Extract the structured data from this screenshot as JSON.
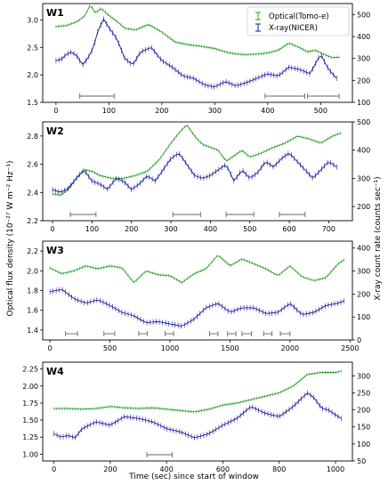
{
  "figure": {
    "xlabel": "Time (sec) since start of window",
    "ylabel_left": "Optical flux density (10⁻²⁷ W m⁻² Hz⁻¹)",
    "ylabel_right": "X-ray count rate (counts sec⁻¹)",
    "legend": [
      "Optical(Tomo-e)",
      "X-ray(NICER)"
    ],
    "colors": {
      "optical": "#2ca02c",
      "xray": "#1515a0",
      "bar": "#666666"
    }
  },
  "chart_data": [
    {
      "type": "line",
      "panel": "W1",
      "xlim": [
        -25,
        560
      ],
      "xticks": [
        0,
        100,
        200,
        300,
        400,
        500
      ],
      "ylim_left": [
        1.5,
        3.3
      ],
      "yticks_left": [
        1.5,
        2.0,
        2.5,
        3.0
      ],
      "ylim_right": [
        100,
        550
      ],
      "yticks_right": [
        100,
        200,
        300,
        400,
        500
      ],
      "legend_position": "top-right",
      "series": [
        {
          "name": "Optical(Tomo-e)",
          "axis": "left",
          "x": [
            0,
            20,
            40,
            55,
            65,
            75,
            85,
            100,
            115,
            130,
            150,
            175,
            200,
            225,
            250,
            275,
            300,
            320,
            340,
            360,
            380,
            400,
            420,
            440,
            460,
            475,
            490,
            505,
            520,
            535
          ],
          "y": [
            2.88,
            2.9,
            2.97,
            3.08,
            3.28,
            3.12,
            3.22,
            3.08,
            2.98,
            2.85,
            2.82,
            2.92,
            2.78,
            2.6,
            2.55,
            2.52,
            2.48,
            2.42,
            2.38,
            2.37,
            2.38,
            2.4,
            2.45,
            2.58,
            2.5,
            2.42,
            2.45,
            2.38,
            2.32,
            2.32
          ]
        },
        {
          "name": "X-ray(NICER)",
          "axis": "right",
          "x": [
            0,
            10,
            20,
            30,
            40,
            50,
            60,
            70,
            80,
            90,
            100,
            115,
            130,
            145,
            160,
            180,
            200,
            220,
            240,
            260,
            280,
            300,
            320,
            340,
            360,
            380,
            400,
            420,
            440,
            460,
            480,
            500,
            515,
            530
          ],
          "y": [
            290,
            295,
            320,
            330,
            310,
            270,
            300,
            345,
            430,
            480,
            440,
            390,
            300,
            270,
            330,
            350,
            290,
            260,
            220,
            210,
            180,
            170,
            195,
            175,
            190,
            210,
            230,
            220,
            260,
            250,
            230,
            320,
            250,
            210
          ]
        }
      ],
      "intervals": [
        [
          45,
          110
        ],
        [
          395,
          470
        ],
        [
          475,
          535
        ]
      ]
    },
    {
      "type": "line",
      "panel": "W2",
      "xlim": [
        -25,
        760
      ],
      "xticks": [
        0,
        100,
        200,
        300,
        400,
        500,
        600,
        700
      ],
      "ylim_left": [
        2.2,
        2.9
      ],
      "yticks_left": [
        2.2,
        2.4,
        2.6,
        2.8
      ],
      "ylim_right": [
        150,
        500
      ],
      "yticks_right": [
        200,
        300,
        400,
        500
      ],
      "series": [
        {
          "name": "Optical(Tomo-e)",
          "axis": "left",
          "x": [
            0,
            20,
            40,
            60,
            80,
            100,
            120,
            150,
            180,
            210,
            240,
            270,
            300,
            320,
            340,
            360,
            380,
            400,
            420,
            440,
            460,
            480,
            500,
            530,
            560,
            590,
            620,
            650,
            680,
            710,
            730
          ],
          "y": [
            2.39,
            2.38,
            2.42,
            2.5,
            2.56,
            2.55,
            2.52,
            2.5,
            2.5,
            2.52,
            2.55,
            2.63,
            2.75,
            2.82,
            2.88,
            2.8,
            2.74,
            2.72,
            2.7,
            2.62,
            2.66,
            2.7,
            2.65,
            2.68,
            2.72,
            2.75,
            2.8,
            2.78,
            2.75,
            2.8,
            2.82
          ]
        },
        {
          "name": "X-ray(NICER)",
          "axis": "right",
          "x": [
            0,
            20,
            40,
            60,
            80,
            100,
            120,
            140,
            160,
            180,
            200,
            220,
            240,
            260,
            280,
            300,
            320,
            340,
            360,
            380,
            400,
            420,
            440,
            460,
            480,
            500,
            520,
            540,
            560,
            580,
            600,
            620,
            640,
            660,
            680,
            700,
            720
          ],
          "y": [
            260,
            250,
            265,
            300,
            330,
            290,
            280,
            260,
            300,
            290,
            260,
            280,
            310,
            290,
            330,
            370,
            390,
            350,
            310,
            300,
            310,
            330,
            350,
            290,
            330,
            300,
            320,
            360,
            340,
            370,
            390,
            360,
            330,
            300,
            330,
            360,
            340
          ]
        }
      ],
      "intervals": [
        [
          45,
          110
        ],
        [
          305,
          375
        ],
        [
          440,
          510
        ],
        [
          575,
          640
        ]
      ]
    },
    {
      "type": "line",
      "panel": "W3",
      "xlim": [
        -60,
        2520
      ],
      "xticks": [
        0,
        500,
        1000,
        1500,
        2000,
        2500
      ],
      "ylim_left": [
        1.3,
        2.3
      ],
      "yticks_left": [
        1.4,
        1.6,
        1.8,
        2.0,
        2.2
      ],
      "ylim_right": [
        0,
        430
      ],
      "yticks_right": [
        0,
        100,
        200,
        300,
        400
      ],
      "series": [
        {
          "name": "Optical(Tomo-e)",
          "axis": "left",
          "x": [
            0,
            100,
            200,
            300,
            400,
            500,
            600,
            700,
            800,
            900,
            1000,
            1100,
            1200,
            1300,
            1400,
            1500,
            1600,
            1700,
            1800,
            1900,
            2000,
            2100,
            2200,
            2300,
            2400,
            2450
          ],
          "y": [
            2.03,
            1.97,
            2.0,
            2.05,
            2.02,
            2.05,
            2.03,
            1.88,
            2.0,
            1.96,
            1.95,
            1.88,
            1.97,
            2.02,
            2.16,
            2.05,
            2.12,
            2.07,
            2.02,
            1.95,
            2.05,
            1.94,
            1.9,
            1.93,
            2.07,
            2.11
          ]
        },
        {
          "name": "X-ray(NICER)",
          "axis": "right",
          "x": [
            0,
            100,
            200,
            300,
            400,
            500,
            600,
            700,
            800,
            900,
            1000,
            1100,
            1200,
            1300,
            1400,
            1500,
            1600,
            1700,
            1800,
            1900,
            2000,
            2100,
            2200,
            2300,
            2400,
            2450
          ],
          "y": [
            210,
            220,
            180,
            160,
            175,
            150,
            120,
            105,
            75,
            80,
            70,
            60,
            90,
            140,
            160,
            120,
            140,
            140,
            115,
            120,
            160,
            110,
            120,
            150,
            160,
            170
          ]
        }
      ],
      "intervals": [
        [
          130,
          230
        ],
        [
          450,
          540
        ],
        [
          740,
          810
        ],
        [
          960,
          1030
        ],
        [
          1330,
          1400
        ],
        [
          1480,
          1550
        ],
        [
          1600,
          1680
        ],
        [
          1780,
          1850
        ],
        [
          1920,
          2000
        ]
      ]
    },
    {
      "type": "line",
      "panel": "W4",
      "xlim": [
        -40,
        1060
      ],
      "xticks": [
        0,
        200,
        400,
        600,
        800,
        1000
      ],
      "ylim_left": [
        0.9,
        2.35
      ],
      "yticks_left": [
        1.0,
        1.25,
        1.5,
        1.75,
        2.0,
        2.25
      ],
      "ylim_right": [
        50,
        340
      ],
      "yticks_right": [
        50,
        100,
        150,
        200,
        250,
        300
      ],
      "series": [
        {
          "name": "Optical(Tomo-e)",
          "axis": "left",
          "x": [
            0,
            50,
            100,
            150,
            200,
            250,
            300,
            350,
            400,
            450,
            500,
            550,
            600,
            650,
            700,
            750,
            800,
            850,
            900,
            950,
            1000,
            1020
          ],
          "y": [
            1.67,
            1.67,
            1.66,
            1.67,
            1.7,
            1.68,
            1.67,
            1.68,
            1.66,
            1.64,
            1.62,
            1.66,
            1.72,
            1.75,
            1.8,
            1.85,
            1.9,
            2.0,
            2.17,
            2.2,
            2.2,
            2.22
          ]
        },
        {
          "name": "X-ray(NICER)",
          "axis": "right",
          "x": [
            0,
            25,
            50,
            75,
            100,
            150,
            200,
            250,
            300,
            350,
            400,
            450,
            500,
            550,
            600,
            650,
            700,
            750,
            800,
            850,
            900,
            925,
            950,
            975,
            1000,
            1020
          ],
          "y": [
            130,
            120,
            125,
            118,
            145,
            165,
            155,
            180,
            175,
            165,
            145,
            135,
            118,
            130,
            155,
            175,
            210,
            190,
            180,
            210,
            250,
            235,
            205,
            200,
            185,
            175
          ]
        }
      ],
      "intervals": [
        [
          330,
          420
        ]
      ]
    }
  ]
}
